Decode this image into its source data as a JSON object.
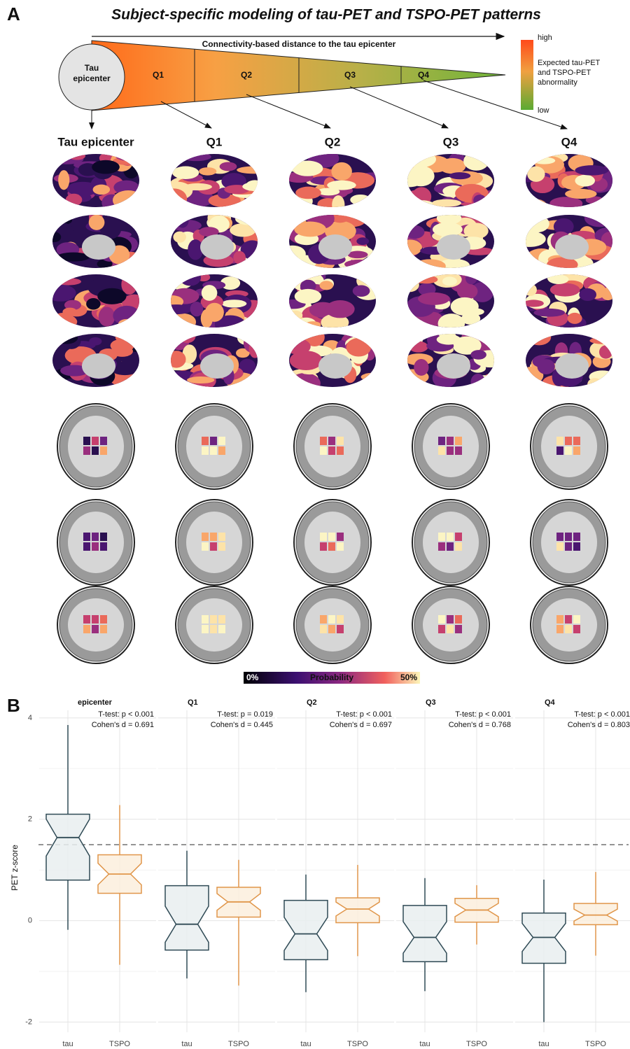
{
  "panel_a": {
    "label": "A",
    "title": "Subject-specific modeling of tau-PET and TSPO-PET patterns",
    "arrow_label": "Connectivity-based distance to the tau epicenter",
    "epicenter_lines": [
      "Tau",
      "epicenter"
    ],
    "wedge_labels": [
      "Q1",
      "Q2",
      "Q3",
      "Q4"
    ],
    "legend": {
      "high": "high",
      "low": "low",
      "lines": [
        "Expected tau-PET",
        "and TSPO-PET",
        "abnormality"
      ]
    },
    "columns": [
      "Tau epicenter",
      "Q1",
      "Q2",
      "Q3",
      "Q4"
    ],
    "colorbar": {
      "min": "0%",
      "label": "Probability",
      "max": "50%"
    }
  },
  "chart_data": {
    "type": "box",
    "panel_label": "B",
    "y_label": "PET z-score",
    "categories": [
      "tau",
      "TSPO"
    ],
    "colors": [
      "#2f4a55",
      "#e0964a"
    ],
    "fills": [
      "#e9eef0",
      "#fbeedd"
    ],
    "ylim": [
      -2.2,
      4.15
    ],
    "yticks": [
      -2,
      0,
      2,
      4
    ],
    "reference_line": 1.5,
    "grid": true,
    "facets": [
      {
        "label": "epicenter",
        "annotations": [
          "T-test: p < 0.001",
          "Cohen's d = 0.691"
        ],
        "boxes": [
          {
            "low": -0.18,
            "q1": 0.8,
            "median": 1.64,
            "q3": 2.1,
            "high": 3.86
          },
          {
            "low": -0.87,
            "q1": 0.54,
            "median": 0.92,
            "q3": 1.3,
            "high": 2.28
          }
        ]
      },
      {
        "label": "Q1",
        "annotations": [
          "T-test: p = 0.019",
          "Cohen's d = 0.445"
        ],
        "boxes": [
          {
            "low": -1.14,
            "q1": -0.58,
            "median": -0.07,
            "q3": 0.69,
            "high": 1.38
          },
          {
            "low": -1.28,
            "q1": 0.07,
            "median": 0.37,
            "q3": 0.66,
            "high": 1.2
          }
        ]
      },
      {
        "label": "Q2",
        "annotations": [
          "T-test: p < 0.001",
          "Cohen's d = 0.697"
        ],
        "boxes": [
          {
            "low": -1.41,
            "q1": -0.77,
            "median": -0.26,
            "q3": 0.4,
            "high": 0.91
          },
          {
            "low": -0.7,
            "q1": -0.04,
            "median": 0.23,
            "q3": 0.45,
            "high": 1.1
          }
        ]
      },
      {
        "label": "Q3",
        "annotations": [
          "T-test: p < 0.001",
          "Cohen's d = 0.768"
        ],
        "boxes": [
          {
            "low": -1.39,
            "q1": -0.81,
            "median": -0.33,
            "q3": 0.3,
            "high": 0.84
          },
          {
            "low": -0.47,
            "q1": -0.03,
            "median": 0.21,
            "q3": 0.44,
            "high": 0.7
          }
        ]
      },
      {
        "label": "Q4",
        "annotations": [
          "T-test: p < 0.001",
          "Cohen's d = 0.803"
        ],
        "boxes": [
          {
            "low": -2.0,
            "q1": -0.84,
            "median": -0.33,
            "q3": 0.15,
            "high": 0.81
          },
          {
            "low": -0.69,
            "q1": -0.08,
            "median": 0.11,
            "q3": 0.34,
            "high": 0.96
          }
        ]
      }
    ]
  }
}
